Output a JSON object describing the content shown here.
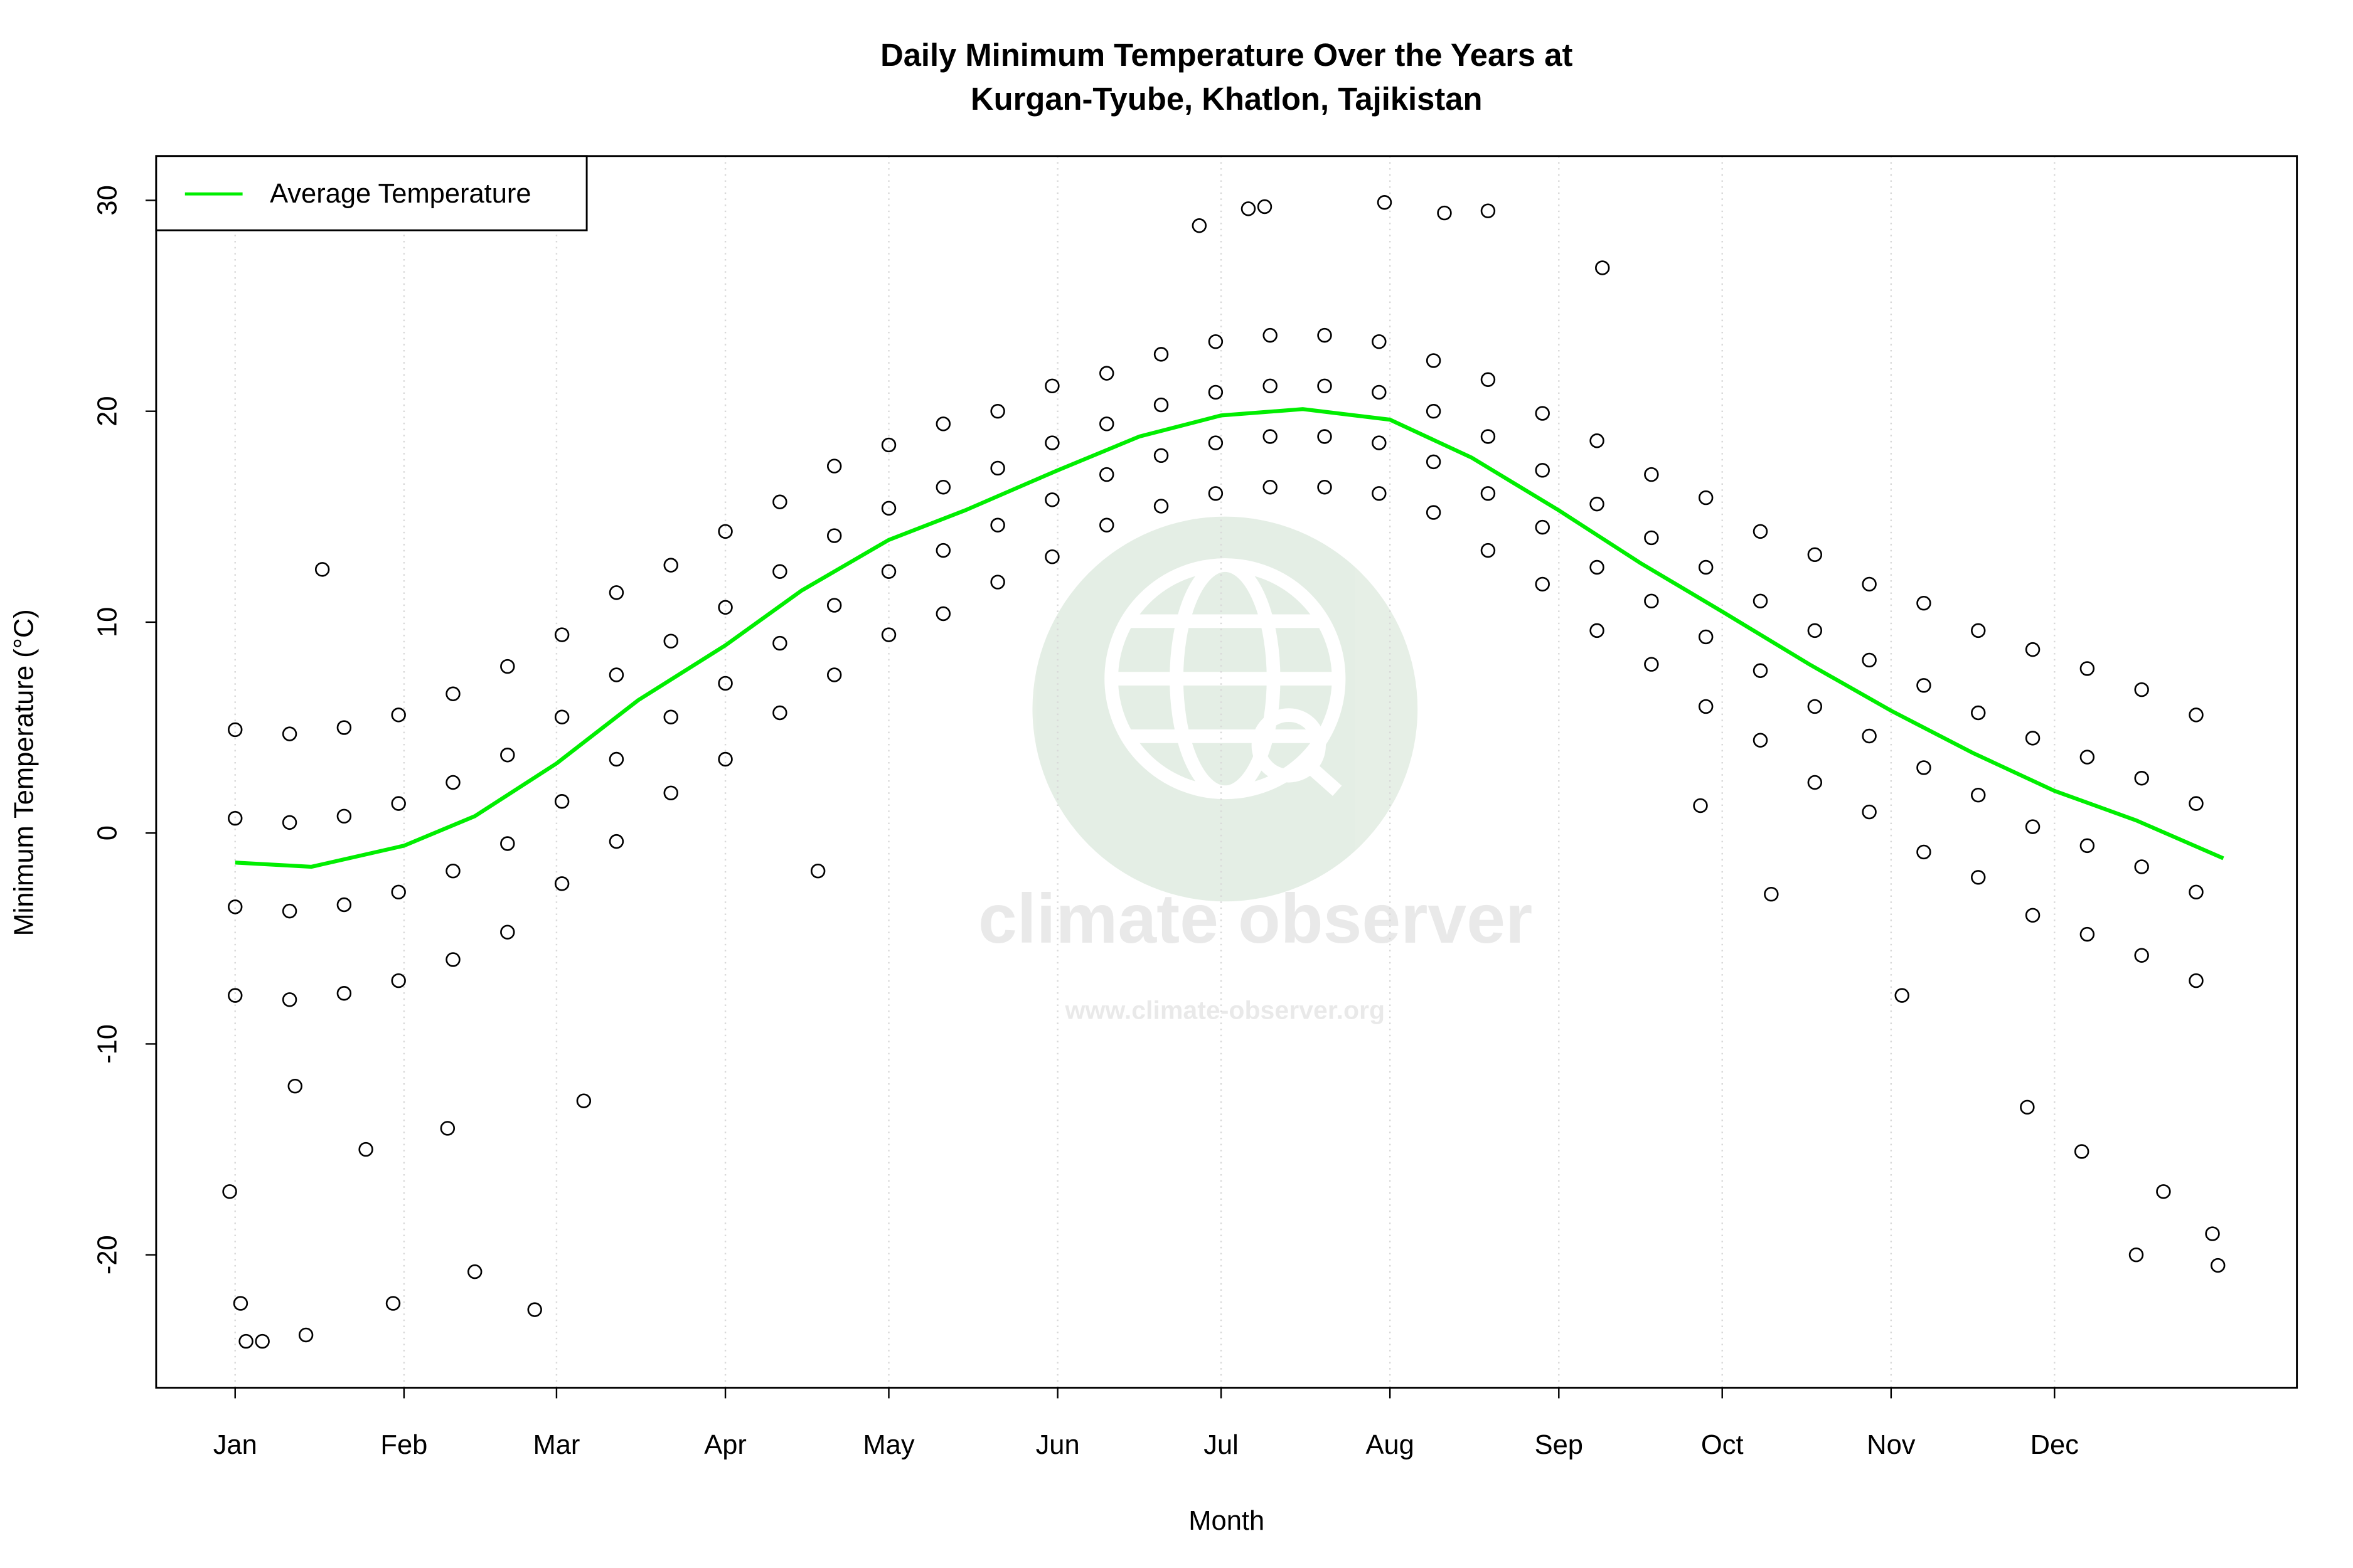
{
  "chart_data": {
    "type": "scatter",
    "title": [
      "Daily Minimum Temperature Over the Years at",
      "Kurgan-Tyube, Khatlon, Tajikistan"
    ],
    "x_label": "Month",
    "y_label": "Minimum Temperature (°C)",
    "watermark": {
      "title": "climate observer",
      "url": "www.climate-observer.org"
    },
    "xlim": [
      -13.5,
      379.5
    ],
    "ylim": [
      -26.3,
      32.1
    ],
    "xticks": [
      {
        "value": 1,
        "label": "Jan"
      },
      {
        "value": 32,
        "label": "Feb"
      },
      {
        "value": 60,
        "label": "Mar"
      },
      {
        "value": 91,
        "label": "Apr"
      },
      {
        "value": 121,
        "label": "May"
      },
      {
        "value": 152,
        "label": "Jun"
      },
      {
        "value": 182,
        "label": "Jul"
      },
      {
        "value": 213,
        "label": "Aug"
      },
      {
        "value": 244,
        "label": "Sep"
      },
      {
        "value": 274,
        "label": "Oct"
      },
      {
        "value": 305,
        "label": "Nov"
      },
      {
        "value": 335,
        "label": "Dec"
      }
    ],
    "yticks": [
      -20,
      -10,
      0,
      10,
      20,
      30
    ],
    "grid": "x",
    "legend": "topleft",
    "point_color": "#000000",
    "x": [
      1,
      1,
      1,
      1,
      11,
      11,
      11,
      11,
      21,
      21,
      21,
      21,
      31,
      31,
      31,
      31,
      41,
      41,
      41,
      41,
      51,
      51,
      51,
      51,
      61,
      61,
      61,
      61,
      71,
      71,
      71,
      71,
      81,
      81,
      81,
      81,
      91,
      91,
      91,
      91,
      101,
      101,
      101,
      101,
      111,
      111,
      111,
      111,
      121,
      121,
      121,
      121,
      131,
      131,
      131,
      131,
      141,
      141,
      141,
      141,
      151,
      151,
      151,
      151,
      161,
      161,
      161,
      161,
      171,
      171,
      171,
      171,
      181,
      181,
      181,
      181,
      191,
      191,
      191,
      191,
      201,
      201,
      201,
      201,
      211,
      211,
      211,
      211,
      221,
      221,
      221,
      221,
      231,
      231,
      231,
      231,
      241,
      241,
      241,
      241,
      251,
      251,
      251,
      251,
      261,
      261,
      261,
      261,
      271,
      271,
      271,
      271,
      281,
      281,
      281,
      281,
      291,
      291,
      291,
      291,
      301,
      301,
      301,
      301,
      311,
      311,
      311,
      311,
      321,
      321,
      321,
      321,
      331,
      331,
      331,
      331,
      341,
      341,
      341,
      341,
      351,
      351,
      351,
      351,
      361,
      361,
      361,
      361,
      3,
      6,
      14,
      2,
      0,
      17,
      56,
      45,
      30,
      178,
      190,
      212,
      223,
      231,
      252,
      187,
      270,
      283,
      108,
      307,
      350,
      365,
      364,
      340,
      12,
      25,
      40,
      330,
      355,
      65
    ],
    "values": [
      4.9,
      0.7,
      -3.5,
      -7.7,
      4.7,
      0.5,
      -3.7,
      -7.9,
      5.0,
      0.8,
      -3.4,
      -7.6,
      5.6,
      1.4,
      -2.8,
      -7.0,
      6.6,
      2.4,
      -1.8,
      -6.0,
      7.9,
      3.7,
      -0.5,
      -4.7,
      9.4,
      5.5,
      1.5,
      -2.4,
      11.4,
      7.5,
      3.5,
      -0.4,
      12.7,
      9.1,
      5.5,
      1.9,
      14.3,
      10.7,
      7.1,
      3.5,
      15.7,
      12.4,
      9.0,
      5.7,
      17.4,
      14.1,
      10.8,
      7.5,
      18.4,
      15.4,
      12.4,
      9.4,
      19.4,
      16.4,
      13.4,
      10.4,
      20.0,
      17.3,
      14.6,
      11.9,
      21.2,
      18.5,
      15.8,
      13.1,
      21.8,
      19.4,
      17.0,
      14.6,
      22.7,
      20.3,
      17.9,
      15.5,
      23.3,
      20.9,
      18.5,
      16.1,
      23.6,
      21.2,
      18.8,
      16.4,
      23.6,
      21.2,
      18.8,
      16.4,
      23.3,
      20.9,
      18.5,
      16.1,
      22.4,
      20.0,
      17.6,
      15.2,
      21.5,
      18.8,
      16.1,
      13.4,
      19.9,
      17.2,
      14.5,
      11.8,
      18.6,
      15.6,
      12.6,
      9.6,
      17.0,
      14.0,
      11.0,
      8.0,
      15.9,
      12.6,
      9.3,
      6.0,
      14.3,
      11.0,
      7.7,
      4.4,
      13.2,
      9.6,
      6.0,
      2.4,
      11.8,
      8.2,
      4.6,
      1.0,
      10.9,
      7.0,
      3.1,
      -0.9,
      9.6,
      5.7,
      1.8,
      -2.1,
      8.7,
      4.5,
      0.3,
      -3.9,
      7.8,
      3.6,
      -0.6,
      -4.8,
      6.8,
      2.6,
      -1.6,
      -5.8,
      5.6,
      1.4,
      -2.8,
      -7.0,
      -24.1,
      -24.1,
      -23.8,
      -22.3,
      -17,
      12.5,
      -22.6,
      -20.8,
      -22.3,
      28.8,
      29.7,
      29.9,
      29.4,
      29.5,
      26.8,
      29.6,
      1.3,
      -2.9,
      -1.8,
      -7.7,
      -20.0,
      -20.5,
      -19.0,
      -15.1,
      -12,
      -15,
      -14,
      -13,
      -17,
      -12.7
    ],
    "line": {
      "name": "Average Temperature",
      "color": "#00ee00",
      "x": [
        1,
        15,
        32,
        45,
        60,
        75,
        91,
        105,
        121,
        135,
        152,
        167,
        182,
        197,
        213,
        228,
        244,
        259,
        274,
        290,
        305,
        320,
        335,
        350,
        366
      ],
      "values": [
        -1.4,
        -1.6,
        -0.6,
        0.8,
        3.3,
        6.3,
        8.9,
        11.5,
        13.9,
        15.3,
        17.2,
        18.8,
        19.8,
        20.1,
        19.6,
        17.8,
        15.3,
        12.8,
        10.5,
        8.0,
        5.8,
        3.8,
        2.0,
        0.6,
        -1.2
      ]
    }
  }
}
